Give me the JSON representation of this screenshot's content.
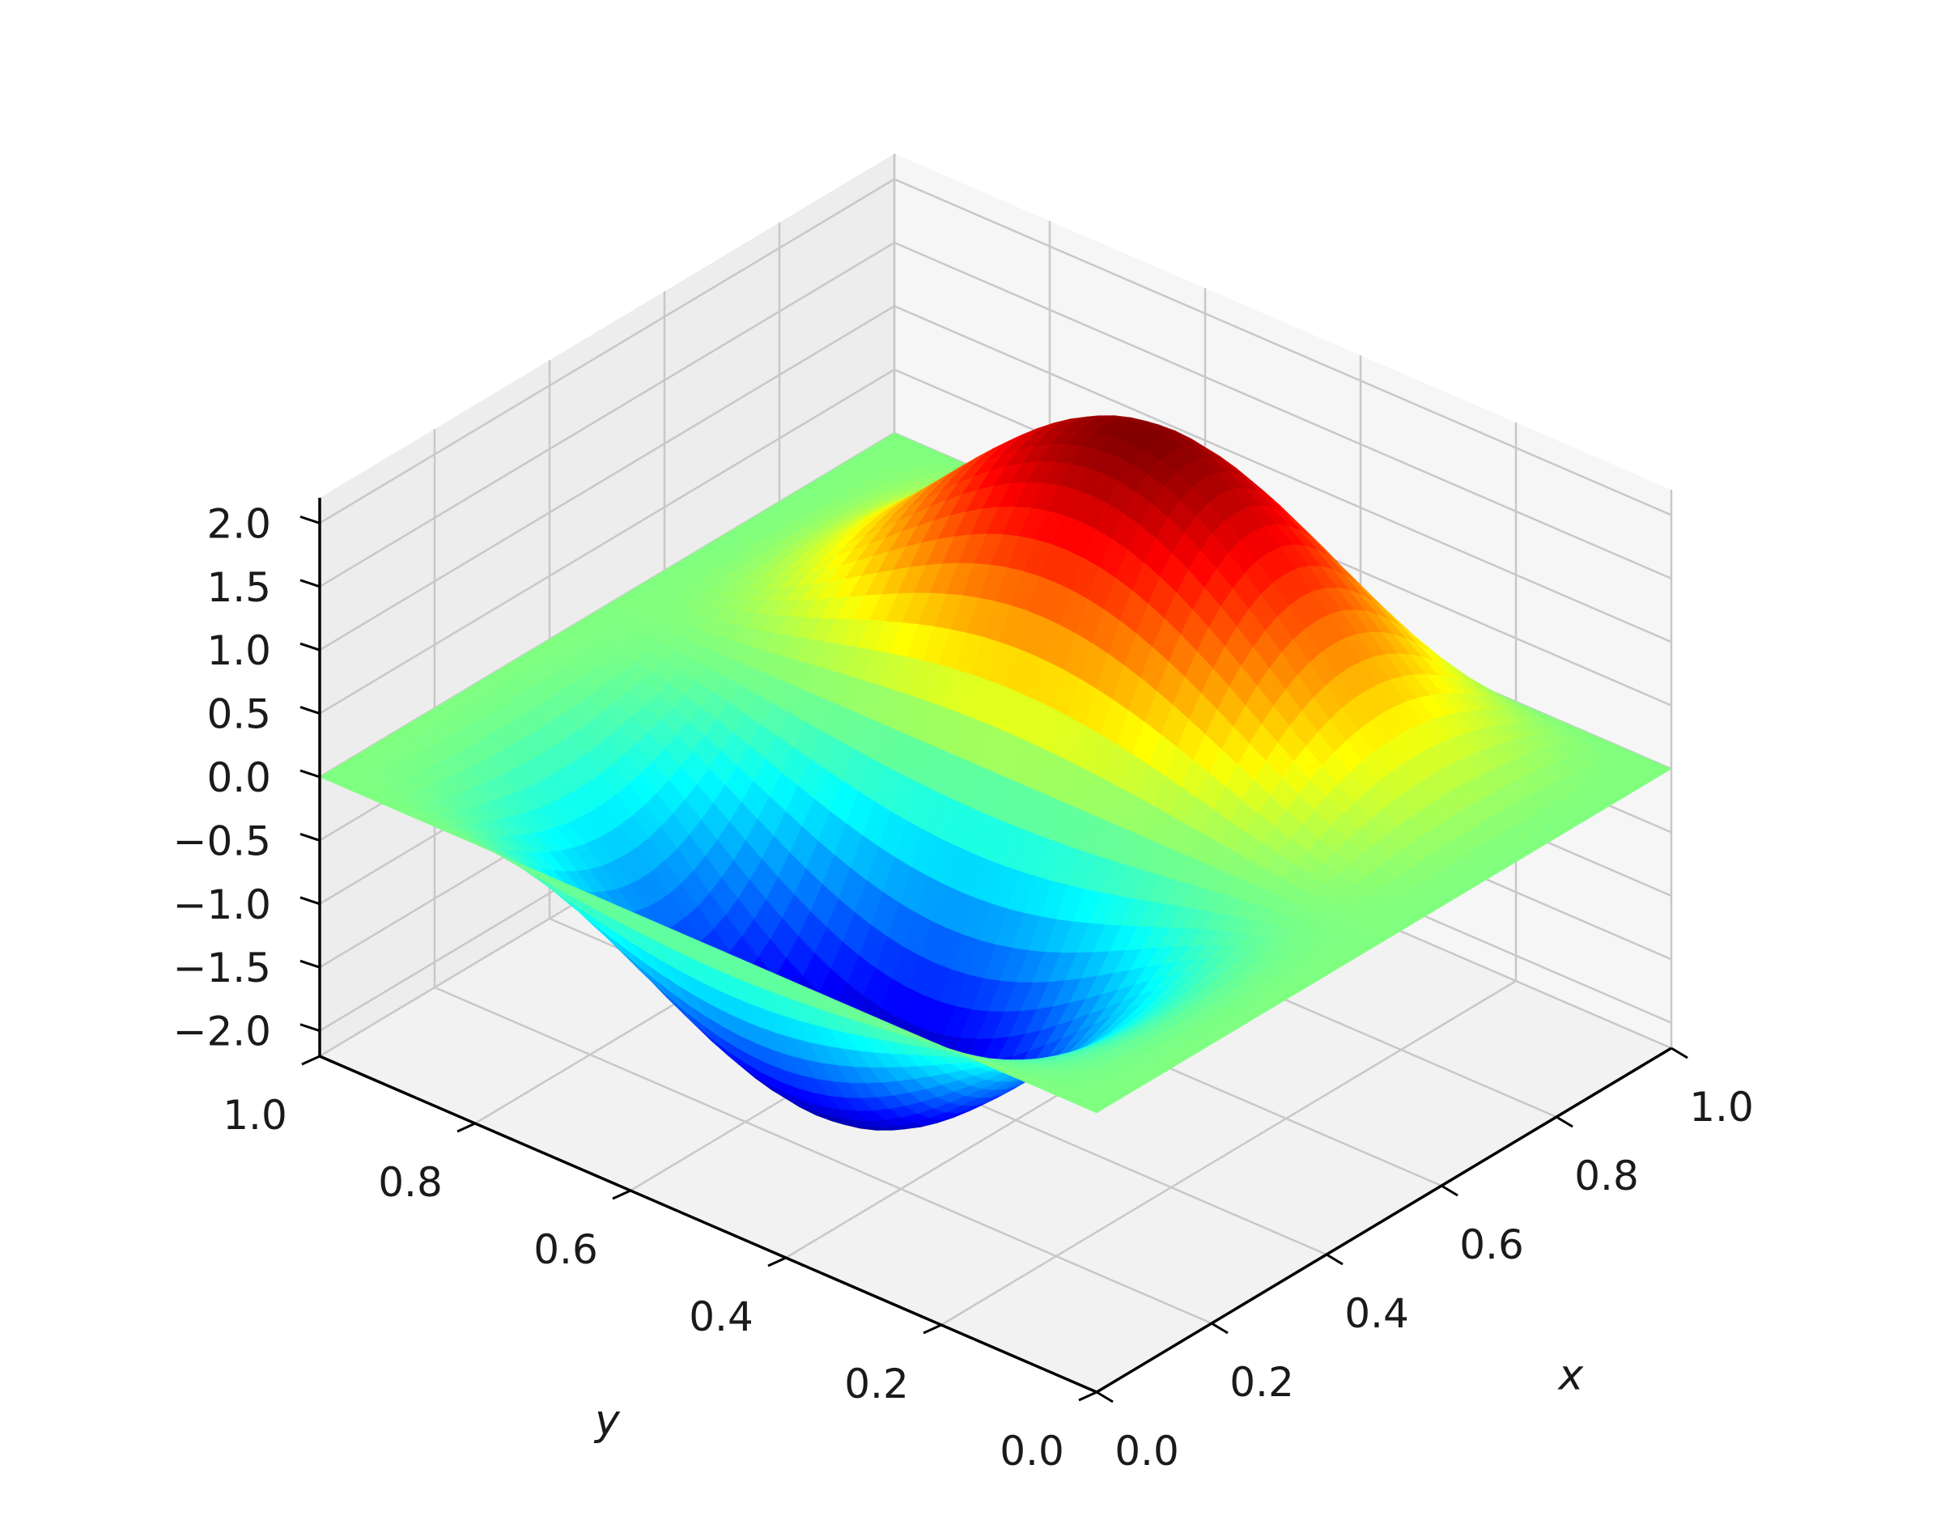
{
  "chart_data": {
    "type": "surface3d",
    "title": "",
    "xlabel": "x",
    "ylabel": "y",
    "zlabel": "",
    "xlim": [
      0.0,
      1.0
    ],
    "ylim": [
      0.0,
      1.0
    ],
    "zlim": [
      -2.2,
      2.2
    ],
    "x_ticks": [
      "0.0",
      "0.2",
      "0.4",
      "0.6",
      "0.8",
      "1.0"
    ],
    "y_ticks": [
      "0.0",
      "0.2",
      "0.4",
      "0.6",
      "0.8",
      "1.0"
    ],
    "z_ticks": [
      "−2.0",
      "−1.5",
      "−1.0",
      "−0.5",
      "0.0",
      "0.5",
      "1.0",
      "1.5",
      "2.0"
    ],
    "grid": true,
    "colormap": "jet",
    "surface": {
      "description_of_function": "z = -2*sin(pi*y)^2*sin(2*pi*x) variant: peak +2.0 near (x=0.75, y=0.5), trough -2.0 near (x=0.25, y=0.5), flat 0 at edges",
      "peak": {
        "x": 0.75,
        "y": 0.5,
        "z": 2.0
      },
      "trough": {
        "x": 0.25,
        "y": 0.5,
        "z": -2.0
      }
    },
    "pane_color": "#f2f2f2",
    "grid_color": "#c8c8c8"
  }
}
